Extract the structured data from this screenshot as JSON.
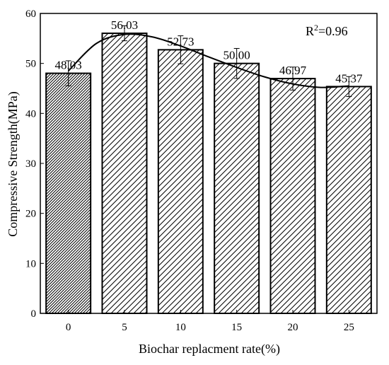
{
  "chart_data": {
    "type": "bar",
    "categories": [
      "0",
      "5",
      "10",
      "15",
      "20",
      "25"
    ],
    "values": [
      48.03,
      56.03,
      52.73,
      50.0,
      46.97,
      45.37
    ],
    "value_labels": [
      "48.03",
      "56.03",
      "52.73",
      "50.00",
      "46.97",
      "45.37"
    ],
    "error_bars": [
      2.5,
      1.5,
      2.8,
      3.0,
      2.3,
      2.0
    ],
    "fit_curve": {
      "type": "polynomial",
      "x": [
        0,
        2.5,
        5,
        7.5,
        10,
        12.5,
        15,
        17.5,
        20,
        22.5,
        25
      ],
      "y": [
        48.5,
        54.0,
        55.8,
        55.3,
        53.5,
        51.3,
        49.2,
        47.3,
        45.9,
        45.2,
        45.5
      ]
    },
    "annotation_prefix": "R",
    "annotation_sup": "2",
    "annotation_value": "=0.96",
    "xlabel": "Biochar replacment rate(%)",
    "ylabel": "Compressive Strength(MPa)",
    "ylim": [
      0,
      60
    ],
    "yticks": [
      "0",
      "10",
      "20",
      "30",
      "40",
      "50",
      "60"
    ],
    "grid": false,
    "bar_fill": "hatched",
    "colors": {
      "bar_edge": "#000000",
      "hatch": "#000000",
      "background": "#ffffff"
    }
  }
}
